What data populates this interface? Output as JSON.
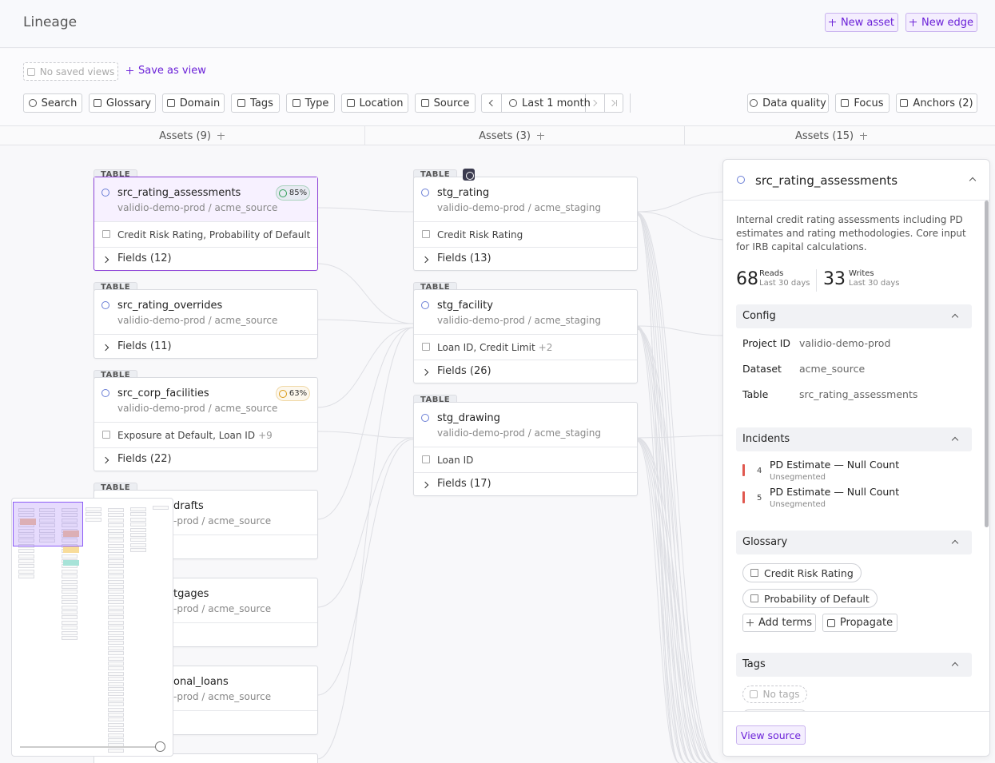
{
  "header": {
    "title": "Lineage",
    "actions": [
      "New asset",
      "New edge"
    ]
  },
  "views": {
    "saved": "No saved views",
    "save": "Save as view"
  },
  "filters": [
    "Search",
    "Glossary",
    "Domain",
    "Tags",
    "Type",
    "Location",
    "Source"
  ],
  "time_range": "Last 1 month",
  "view_options": [
    "Data quality",
    "Focus",
    "Anchors (2)"
  ],
  "columns": [
    "Assets (9)",
    "Assets (3)",
    "Assets (15)"
  ],
  "nodes_left": [
    {
      "kind": "TABLE",
      "name": "src_rating_assessments",
      "path": "validio-demo-prod / acme_source",
      "badge": "85%",
      "terms": "Credit Risk Rating, Probability of Default",
      "fields": "Fields (12)"
    },
    {
      "kind": "TABLE",
      "name": "src_rating_overrides",
      "path": "validio-demo-prod / acme_source",
      "fields": "Fields (11)"
    },
    {
      "kind": "TABLE",
      "name": "src_corp_facilities",
      "path": "validio-demo-prod / acme_source",
      "badge": "63%",
      "terms": "Exposure at Default, Loan ID",
      "terms_more": "+9",
      "fields": "Fields (22)"
    },
    {
      "kind": "TABLE",
      "name": "drafts",
      "path": "-prod / acme_source"
    },
    {
      "name": "tgages",
      "path": "-prod / acme_source"
    },
    {
      "name": "onal_loans",
      "path": "-prod / acme_source"
    }
  ],
  "nodes_middle": [
    {
      "kind": "TABLE",
      "name": "stg_rating",
      "path": "validio-demo-prod / acme_staging",
      "terms": "Credit Risk Rating",
      "fields": "Fields (13)"
    },
    {
      "kind": "TABLE",
      "name": "stg_facility",
      "path": "validio-demo-prod / acme_staging",
      "terms": "Loan ID, Credit Limit",
      "terms_more": "+2",
      "fields": "Fields (26)"
    },
    {
      "kind": "TABLE",
      "name": "stg_drawing",
      "path": "validio-demo-prod / acme_staging",
      "terms": "Loan ID",
      "fields": "Fields (17)"
    }
  ],
  "details": {
    "title": "src_rating_assessments",
    "description": "Internal credit rating assessments including PD estimates and rating methodologies. Core input for IRB capital calculations.",
    "stats": [
      {
        "value": 68,
        "label": "Reads",
        "period": "Last 30 days"
      },
      {
        "value": 33,
        "label": "Writes",
        "period": "Last 30 days"
      }
    ],
    "config": {
      "title": "Config",
      "rows": [
        [
          "Project ID",
          "validio-demo-prod"
        ],
        [
          "Dataset",
          "acme_source"
        ],
        [
          "Table",
          "src_rating_assessments"
        ]
      ]
    },
    "incidents": {
      "title": "Incidents",
      "items": [
        {
          "count": 4,
          "title": "PD Estimate — Null Count",
          "segment": "Unsegmented"
        },
        {
          "count": 5,
          "title": "PD Estimate — Null Count",
          "segment": "Unsegmented"
        }
      ]
    },
    "glossary": {
      "title": "Glossary",
      "terms": [
        "Credit Risk Rating",
        "Probability of Default"
      ],
      "actions": [
        "Add terms",
        "Propagate"
      ]
    },
    "tags": {
      "title": "Tags",
      "empty": "No tags"
    },
    "footer": "View source"
  }
}
